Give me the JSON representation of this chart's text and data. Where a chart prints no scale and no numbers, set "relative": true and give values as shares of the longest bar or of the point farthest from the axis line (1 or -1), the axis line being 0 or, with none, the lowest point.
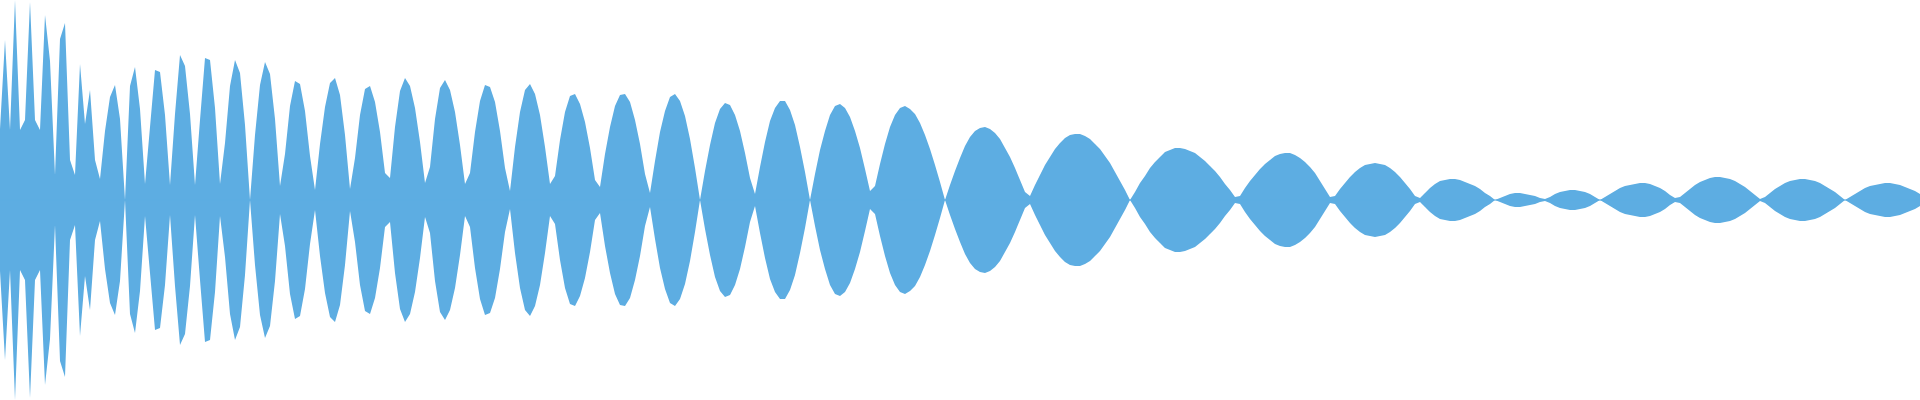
{
  "chart_data": {
    "type": "area",
    "relative": true,
    "ref_lines": [
      {
        "axis": "y",
        "value": 0,
        "color": "#5dade2"
      }
    ],
    "categories": [
      null,
      null,
      null,
      null,
      null,
      null,
      null,
      null,
      null,
      null,
      null,
      null,
      null,
      null,
      null,
      null,
      null,
      null,
      null,
      null,
      null,
      null,
      null,
      null,
      null,
      null,
      null,
      null,
      null,
      null,
      null,
      null,
      null,
      null,
      null,
      null,
      null,
      null,
      null,
      null,
      null,
      null,
      null,
      null,
      null,
      null,
      null,
      null,
      null,
      null,
      null,
      null,
      null,
      null,
      null,
      null,
      null,
      null,
      null,
      null,
      null,
      null,
      null,
      null,
      null,
      null,
      null,
      null,
      null,
      null,
      null,
      null,
      null,
      null,
      null,
      null,
      null,
      null,
      null,
      null,
      null,
      null,
      null,
      null,
      null,
      null,
      null,
      null,
      null,
      null,
      null,
      null,
      null,
      null,
      null,
      null,
      null,
      null,
      null,
      null,
      null,
      null,
      null,
      null,
      null,
      null,
      null,
      null,
      null,
      null,
      null,
      null,
      null,
      null,
      null,
      null,
      null,
      null,
      null,
      null,
      null,
      null,
      null,
      null,
      null,
      null,
      null,
      null,
      null,
      null,
      null,
      null,
      null,
      null,
      null,
      null,
      null,
      null,
      null,
      null,
      null,
      null,
      null,
      null,
      null,
      null,
      null,
      null,
      null,
      null,
      null,
      null,
      null,
      null,
      null,
      null,
      null,
      null,
      null,
      null,
      null,
      null,
      null,
      null,
      null,
      null,
      null,
      null,
      null,
      null,
      null,
      null,
      null,
      null,
      null,
      null,
      null,
      null,
      null,
      null,
      null,
      null,
      null,
      null,
      null,
      null,
      null,
      null,
      null,
      null,
      null,
      null,
      null,
      null,
      null,
      null,
      null,
      null,
      null,
      null,
      null,
      null,
      null,
      null,
      null,
      null,
      null,
      null,
      null,
      null,
      null,
      null,
      null,
      null,
      null,
      null,
      null,
      null,
      null,
      null,
      null,
      null,
      null,
      null,
      null,
      null,
      null,
      null,
      null,
      null,
      null,
      null,
      null,
      null,
      null,
      null,
      null,
      null,
      null,
      null,
      null,
      null,
      null,
      null,
      null,
      null,
      null,
      null,
      null,
      null,
      null,
      null,
      null,
      null,
      null,
      null,
      null,
      null,
      null,
      null,
      null,
      null,
      null,
      null,
      null,
      null,
      null,
      null,
      null,
      null,
      null,
      null,
      null,
      null,
      null,
      null,
      null,
      null,
      null,
      null,
      null,
      null,
      null,
      null,
      null,
      null,
      null,
      null,
      null,
      null,
      null,
      null,
      null,
      null,
      null,
      null,
      null,
      null,
      null,
      null,
      null,
      null,
      null,
      null,
      null,
      null,
      null,
      null,
      null,
      null,
      null,
      null,
      null,
      null,
      null,
      null,
      null,
      null,
      null,
      null,
      null,
      null,
      null,
      null,
      null,
      null,
      null,
      null,
      null,
      null,
      null,
      null,
      null,
      null,
      null,
      null,
      null,
      null,
      null,
      null,
      null,
      null,
      null,
      null,
      null,
      null,
      null,
      null,
      null,
      null,
      null,
      null,
      null,
      null,
      null,
      null,
      null,
      null,
      null,
      null,
      null,
      null,
      null,
      null,
      null,
      null,
      null,
      null,
      null,
      null,
      null,
      null,
      null,
      null,
      null,
      null,
      null,
      null,
      null,
      null,
      null,
      null,
      null,
      null,
      null
    ],
    "series": [
      {
        "color": "#5dade2",
        "values": [
          0.355,
          0.8,
          0.35,
          1,
          0.35,
          0.4,
          0.99,
          0.4,
          0.35,
          0.925,
          0.695,
          0.125,
          0.805,
          0.885,
          0.2,
          0.125,
          0.68,
          0.38,
          0.55,
          0.2,
          0.105,
          0.345,
          0.515,
          0.575,
          0.405,
          0,
          0.57,
          0.665,
          0.455,
          0.08,
          0.365,
          0.65,
          0.64,
          0.425,
          0.075,
          0.43,
          0.725,
          0.67,
          0.43,
          0.075,
          0.4,
          0.71,
          0.7,
          0.46,
          0.08,
          0.285,
          0.57,
          0.7,
          0.635,
          0.375,
          0,
          0.325,
          0.575,
          0.69,
          0.63,
          0.405,
          0.07,
          0.23,
          0.47,
          0.595,
          0.58,
          0.445,
          0.22,
          0.05,
          0.28,
          0.465,
          0.585,
          0.61,
          0.525,
          0.325,
          0.055,
          0.21,
          0.425,
          0.555,
          0.57,
          0.49,
          0.34,
          0.135,
          0.11,
          0.365,
          0.545,
          0.61,
          0.57,
          0.46,
          0.29,
          0.085,
          0.165,
          0.405,
          0.56,
          0.6,
          0.55,
          0.44,
          0.275,
          0.08,
          0.135,
          0.34,
          0.495,
          0.575,
          0.565,
          0.49,
          0.345,
          0.16,
          0.045,
          0.265,
          0.44,
          0.55,
          0.58,
          0.53,
          0.425,
          0.265,
          0.08,
          0.12,
          0.3,
          0.44,
          0.52,
          0.53,
          0.48,
          0.39,
          0.26,
          0.1,
          0.065,
          0.23,
          0.365,
          0.47,
          0.525,
          0.53,
          0.49,
          0.4,
          0.28,
          0.13,
          0.035,
          0.195,
          0.34,
          0.445,
          0.515,
          0.53,
          0.495,
          0.42,
          0.305,
          0.16,
          0,
          0.145,
          0.275,
          0.385,
          0.455,
          0.485,
          0.475,
          0.425,
          0.345,
          0.235,
          0.11,
          0.03,
          0.165,
          0.29,
          0.395,
          0.46,
          0.495,
          0.495,
          0.45,
          0.375,
          0.265,
          0.14,
          0,
          0.13,
          0.25,
          0.345,
          0.425,
          0.47,
          0.48,
          0.46,
          0.415,
          0.345,
          0.26,
          0.155,
          0.045,
          0.07,
          0.18,
          0.28,
          0.365,
          0.425,
          0.46,
          0.47,
          0.455,
          0.43,
          0.385,
          0.325,
          0.255,
          0.175,
          0.09,
          0,
          0.075,
          0.145,
          0.21,
          0.27,
          0.315,
          0.345,
          0.36,
          0.365,
          0.355,
          0.335,
          0.305,
          0.26,
          0.215,
          0.16,
          0.1,
          0.04,
          0.02,
          0.075,
          0.125,
          0.175,
          0.215,
          0.255,
          0.285,
          0.31,
          0.325,
          0.33,
          0.33,
          0.32,
          0.305,
          0.28,
          0.255,
          0.22,
          0.185,
          0.14,
          0.095,
          0.05,
          0,
          0.04,
          0.085,
          0.12,
          0.16,
          0.19,
          0.215,
          0.24,
          0.25,
          0.26,
          0.26,
          0.255,
          0.245,
          0.235,
          0.215,
          0.195,
          0.17,
          0.145,
          0.115,
          0.08,
          0.05,
          0.015,
          0.02,
          0.06,
          0.095,
          0.125,
          0.155,
          0.18,
          0.2,
          0.22,
          0.23,
          0.235,
          0.235,
          0.225,
          0.21,
          0.19,
          0.165,
          0.135,
          0.095,
          0.055,
          0.015,
          0.02,
          0.055,
          0.085,
          0.115,
          0.14,
          0.16,
          0.175,
          0.18,
          0.185,
          0.18,
          0.175,
          0.16,
          0.14,
          0.115,
          0.085,
          0.055,
          0.02,
          0.01,
          0.035,
          0.06,
          0.08,
          0.095,
          0.1,
          0.105,
          0.105,
          0.1,
          0.09,
          0.08,
          0.07,
          0.055,
          0.035,
          0.02,
          0,
          0.01,
          0.02,
          0.03,
          0.035,
          0.035,
          0.03,
          0.025,
          0.02,
          0.01,
          0.005,
          0.015,
          0.03,
          0.04,
          0.045,
          0.05,
          0.05,
          0.045,
          0.04,
          0.03,
          0.015,
          0,
          0.015,
          0.03,
          0.045,
          0.06,
          0.07,
          0.075,
          0.08,
          0.085,
          0.085,
          0.08,
          0.07,
          0.06,
          0.045,
          0.025,
          0.01,
          0.015,
          0.035,
          0.055,
          0.075,
          0.09,
          0.1,
          0.11,
          0.115,
          0.115,
          0.11,
          0.105,
          0.095,
          0.08,
          0.065,
          0.045,
          0.025,
          0.005,
          0.015,
          0.035,
          0.055,
          0.07,
          0.085,
          0.095,
          0.1,
          0.105,
          0.105,
          0.1,
          0.095,
          0.085,
          0.07,
          0.055,
          0.04,
          0.02,
          0,
          0.015,
          0.03,
          0.045,
          0.06,
          0.07,
          0.075,
          0.08,
          0.085,
          0.085,
          0.08,
          0.075,
          0.065,
          0.055,
          0.045,
          0.03
        ]
      },
      {
        "color": "#5dade2",
        "values": [
          -0.355,
          -0.8,
          -0.35,
          -1,
          -0.35,
          -0.4,
          -0.99,
          -0.4,
          -0.35,
          -0.925,
          -0.695,
          -0.125,
          -0.805,
          -0.885,
          -0.2,
          -0.125,
          -0.68,
          -0.38,
          -0.55,
          -0.2,
          -0.105,
          -0.345,
          -0.515,
          -0.575,
          -0.405,
          0,
          -0.57,
          -0.665,
          -0.455,
          -0.08,
          -0.365,
          -0.65,
          -0.64,
          -0.425,
          -0.075,
          -0.43,
          -0.725,
          -0.67,
          -0.43,
          -0.075,
          -0.4,
          -0.71,
          -0.7,
          -0.46,
          -0.08,
          -0.285,
          -0.57,
          -0.7,
          -0.635,
          -0.375,
          0,
          -0.325,
          -0.575,
          -0.69,
          -0.63,
          -0.405,
          -0.07,
          -0.23,
          -0.47,
          -0.595,
          -0.58,
          -0.445,
          -0.22,
          -0.05,
          -0.28,
          -0.465,
          -0.585,
          -0.61,
          -0.525,
          -0.325,
          -0.055,
          -0.21,
          -0.425,
          -0.555,
          -0.57,
          -0.49,
          -0.34,
          -0.135,
          -0.11,
          -0.365,
          -0.545,
          -0.61,
          -0.57,
          -0.46,
          -0.29,
          -0.085,
          -0.165,
          -0.405,
          -0.56,
          -0.6,
          -0.55,
          -0.44,
          -0.275,
          -0.08,
          -0.135,
          -0.34,
          -0.495,
          -0.575,
          -0.565,
          -0.49,
          -0.345,
          -0.16,
          -0.045,
          -0.265,
          -0.44,
          -0.55,
          -0.58,
          -0.53,
          -0.425,
          -0.265,
          -0.08,
          -0.12,
          -0.3,
          -0.44,
          -0.52,
          -0.53,
          -0.48,
          -0.39,
          -0.26,
          -0.1,
          -0.065,
          -0.23,
          -0.365,
          -0.47,
          -0.525,
          -0.53,
          -0.49,
          -0.4,
          -0.28,
          -0.13,
          -0.035,
          -0.195,
          -0.34,
          -0.445,
          -0.515,
          -0.53,
          -0.495,
          -0.42,
          -0.305,
          -0.16,
          0,
          -0.145,
          -0.275,
          -0.385,
          -0.455,
          -0.485,
          -0.475,
          -0.425,
          -0.345,
          -0.235,
          -0.11,
          -0.03,
          -0.165,
          -0.29,
          -0.395,
          -0.46,
          -0.495,
          -0.495,
          -0.45,
          -0.375,
          -0.265,
          -0.14,
          0,
          -0.13,
          -0.25,
          -0.345,
          -0.425,
          -0.47,
          -0.48,
          -0.46,
          -0.415,
          -0.345,
          -0.26,
          -0.155,
          -0.045,
          -0.07,
          -0.18,
          -0.28,
          -0.365,
          -0.425,
          -0.46,
          -0.47,
          -0.455,
          -0.43,
          -0.385,
          -0.325,
          -0.255,
          -0.175,
          -0.09,
          0,
          -0.075,
          -0.145,
          -0.21,
          -0.27,
          -0.315,
          -0.345,
          -0.36,
          -0.365,
          -0.355,
          -0.335,
          -0.305,
          -0.26,
          -0.215,
          -0.16,
          -0.1,
          -0.04,
          -0.02,
          -0.075,
          -0.125,
          -0.175,
          -0.215,
          -0.255,
          -0.285,
          -0.31,
          -0.325,
          -0.33,
          -0.33,
          -0.32,
          -0.305,
          -0.28,
          -0.255,
          -0.22,
          -0.185,
          -0.14,
          -0.095,
          -0.05,
          0,
          -0.04,
          -0.085,
          -0.12,
          -0.16,
          -0.19,
          -0.215,
          -0.24,
          -0.25,
          -0.26,
          -0.26,
          -0.255,
          -0.245,
          -0.235,
          -0.215,
          -0.195,
          -0.17,
          -0.145,
          -0.115,
          -0.08,
          -0.05,
          -0.015,
          -0.02,
          -0.06,
          -0.095,
          -0.125,
          -0.155,
          -0.18,
          -0.2,
          -0.22,
          -0.23,
          -0.235,
          -0.235,
          -0.225,
          -0.21,
          -0.19,
          -0.165,
          -0.135,
          -0.095,
          -0.055,
          -0.015,
          -0.02,
          -0.055,
          -0.085,
          -0.115,
          -0.14,
          -0.16,
          -0.175,
          -0.18,
          -0.185,
          -0.18,
          -0.175,
          -0.16,
          -0.14,
          -0.115,
          -0.085,
          -0.055,
          -0.02,
          -0.01,
          -0.035,
          -0.06,
          -0.08,
          -0.095,
          -0.1,
          -0.105,
          -0.105,
          -0.1,
          -0.09,
          -0.08,
          -0.07,
          -0.055,
          -0.035,
          -0.02,
          0,
          -0.01,
          -0.02,
          -0.03,
          -0.035,
          -0.035,
          -0.03,
          -0.025,
          -0.02,
          -0.01,
          -0.005,
          -0.015,
          -0.03,
          -0.04,
          -0.045,
          -0.05,
          -0.05,
          -0.045,
          -0.04,
          -0.03,
          -0.015,
          0,
          -0.015,
          -0.03,
          -0.045,
          -0.06,
          -0.07,
          -0.075,
          -0.08,
          -0.085,
          -0.085,
          -0.08,
          -0.07,
          -0.06,
          -0.045,
          -0.025,
          -0.01,
          -0.015,
          -0.035,
          -0.055,
          -0.075,
          -0.09,
          -0.1,
          -0.11,
          -0.115,
          -0.115,
          -0.11,
          -0.105,
          -0.095,
          -0.08,
          -0.065,
          -0.045,
          -0.025,
          -0.005,
          -0.015,
          -0.035,
          -0.055,
          -0.07,
          -0.085,
          -0.095,
          -0.1,
          -0.105,
          -0.105,
          -0.1,
          -0.095,
          -0.085,
          -0.07,
          -0.055,
          -0.04,
          -0.02,
          0,
          -0.015,
          -0.03,
          -0.045,
          -0.06,
          -0.07,
          -0.075,
          -0.08,
          -0.085,
          -0.085,
          -0.08,
          -0.075,
          -0.065,
          -0.055,
          -0.045,
          -0.03
        ]
      }
    ]
  }
}
